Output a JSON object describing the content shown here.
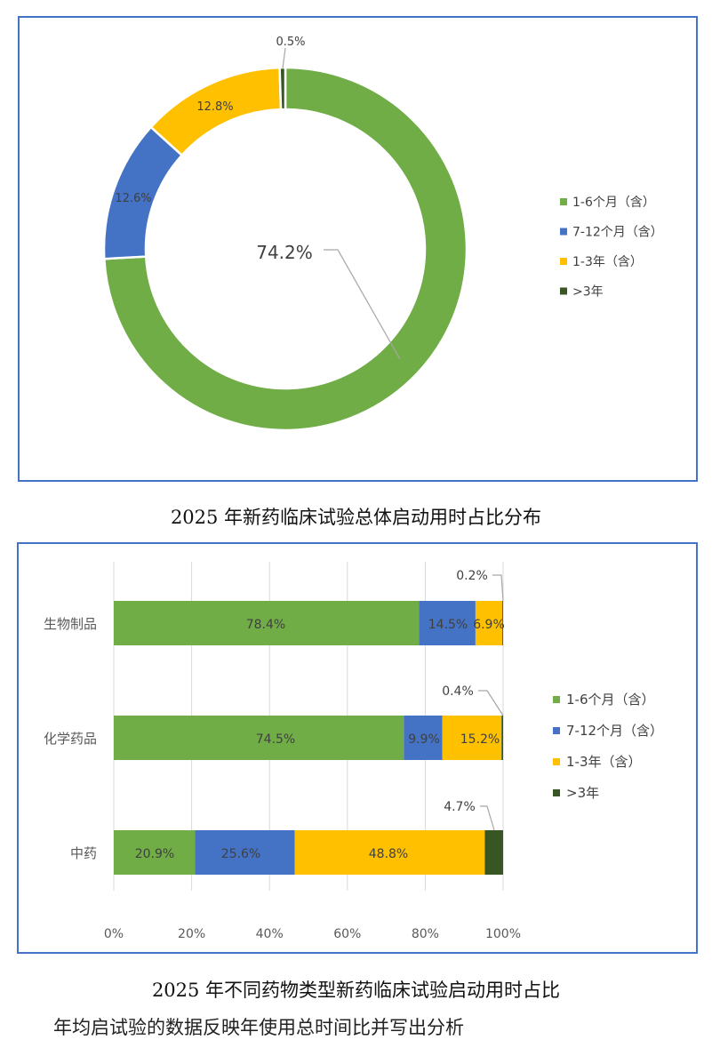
{
  "legend": [
    {
      "label": "1-6个月（含）",
      "color": "#70ad47"
    },
    {
      "label": "7-12个月（含）",
      "color": "#4472c4"
    },
    {
      "label": "1-3年（含）",
      "color": "#ffc000"
    },
    {
      "label": ">3年",
      "color": "#375623"
    }
  ],
  "chart_data": [
    {
      "type": "pie",
      "variant": "donut",
      "title": "2025 年新药临床试验总体启动用时占比分布",
      "legend_position": "right",
      "slices": [
        {
          "label": "1-6个月（含）",
          "value": 74.2,
          "text": "74.2%",
          "color": "#70ad47"
        },
        {
          "label": "7-12个月（含）",
          "value": 12.6,
          "text": "12.6%",
          "color": "#4472c4"
        },
        {
          "label": "1-3年（含）",
          "value": 12.8,
          "text": "12.8%",
          "color": "#ffc000"
        },
        {
          "label": ">3年",
          "value": 0.5,
          "text": "0.5%",
          "color": "#375623"
        }
      ]
    },
    {
      "type": "bar",
      "orientation": "horizontal",
      "stacked": "percent",
      "title": "2025 年不同药物类型新药临床试验启动用时占比",
      "legend_position": "right",
      "categories": [
        "生物制品",
        "化学药品",
        "中药"
      ],
      "xlim": [
        0,
        100
      ],
      "x_ticks": [
        "0%",
        "20%",
        "40%",
        "60%",
        "80%",
        "100%"
      ],
      "grid": true,
      "series": [
        {
          "name": "1-6个月（含）",
          "color": "#70ad47",
          "values": [
            78.4,
            74.5,
            20.9
          ],
          "labels": [
            "78.4%",
            "74.5%",
            "20.9%"
          ]
        },
        {
          "name": "7-12个月（含）",
          "color": "#4472c4",
          "values": [
            14.5,
            9.9,
            25.6
          ],
          "labels": [
            "14.5%",
            "9.9%",
            "25.6%"
          ]
        },
        {
          "name": "1-3年（含）",
          "color": "#ffc000",
          "values": [
            6.9,
            15.2,
            48.8
          ],
          "labels": [
            "6.9%",
            "15.2%",
            "48.8%"
          ]
        },
        {
          "name": ">3年",
          "color": "#375623",
          "values": [
            0.2,
            0.4,
            4.7
          ],
          "labels": [
            "0.2%",
            "0.4%",
            "4.7%"
          ]
        }
      ]
    }
  ],
  "captions": {
    "chart1": "2025 年新药临床试验总体启动用时占比分布",
    "chart2": "2025 年不同药物类型新药临床试验启动用时占比"
  },
  "body_text": "年均启试验的数据反映年使用总时间比并写出分析"
}
